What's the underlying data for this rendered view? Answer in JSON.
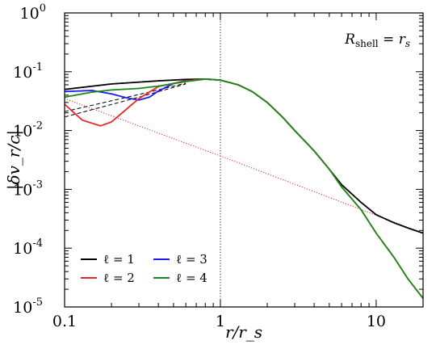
{
  "chart_data": {
    "type": "line",
    "xscale": "log",
    "yscale": "log",
    "xlim": [
      0.1,
      20
    ],
    "ylim": [
      1e-05,
      1
    ],
    "grid": false,
    "xlabel": "r/r_s",
    "ylabel": "|δv_r/c|",
    "x_ticks": [
      {
        "value": 0.1,
        "label": "0.1"
      },
      {
        "value": 1,
        "label": "1"
      },
      {
        "value": 10,
        "label": "10"
      }
    ],
    "y_ticks": [
      {
        "value": 1,
        "base": "10",
        "exp": "0"
      },
      {
        "value": 0.1,
        "base": "10",
        "exp": "-1"
      },
      {
        "value": 0.01,
        "base": "10",
        "exp": "-2"
      },
      {
        "value": 0.001,
        "base": "10",
        "exp": "-3"
      },
      {
        "value": 0.0001,
        "base": "10",
        "exp": "-4"
      },
      {
        "value": 1e-05,
        "base": "10",
        "exp": "-5"
      }
    ],
    "annotation": {
      "lhs": "R",
      "sub": "shell",
      "rhs": " = r",
      "rhs_sub": "s",
      "position": "top-right"
    },
    "vline": {
      "x": 1,
      "style": "dotted"
    },
    "legend": {
      "position": "bottom-left",
      "entries": [
        {
          "label": "ℓ = 1",
          "color": "#000000"
        },
        {
          "label": "ℓ = 2",
          "color": "#e8272a"
        },
        {
          "label": "ℓ = 3",
          "color": "#1c1cf0"
        },
        {
          "label": "ℓ = 4",
          "color": "#1a8a1a"
        }
      ]
    },
    "series": [
      {
        "name": "ℓ = 1",
        "color": "#000000",
        "x": [
          0.1,
          0.2,
          0.4,
          0.6,
          0.8,
          1.0,
          1.3,
          1.6,
          2.0,
          2.5,
          3.0,
          4.0,
          5.0,
          6.0,
          8.0,
          10.0,
          13.0,
          16.0,
          20.0
        ],
        "y": [
          0.05,
          0.062,
          0.07,
          0.074,
          0.075,
          0.072,
          0.06,
          0.046,
          0.03,
          0.017,
          0.01,
          0.0045,
          0.0022,
          0.0012,
          0.0006,
          0.00037,
          0.00027,
          0.00022,
          0.00018
        ]
      },
      {
        "name": "ℓ = 2",
        "color": "#e8272a",
        "x": [
          0.1,
          0.13,
          0.17,
          0.2,
          0.3,
          0.4,
          0.6,
          0.8,
          1.0,
          1.3,
          1.6,
          2.0,
          2.5,
          3.0,
          4.0,
          5.0,
          6.0,
          8.0,
          10.0,
          13.0,
          16.0,
          20.0
        ],
        "y": [
          0.028,
          0.015,
          0.012,
          0.014,
          0.035,
          0.056,
          0.07,
          0.075,
          0.072,
          0.06,
          0.046,
          0.03,
          0.017,
          0.01,
          0.0045,
          0.0022,
          0.0011,
          0.00045,
          0.00018,
          7e-05,
          3e-05,
          1.4e-05
        ]
      },
      {
        "name": "ℓ = 3",
        "color": "#1c1cf0",
        "x": [
          0.1,
          0.15,
          0.2,
          0.25,
          0.3,
          0.35,
          0.4,
          0.5,
          0.6,
          0.8,
          1.0
        ],
        "y": [
          0.046,
          0.048,
          0.042,
          0.036,
          0.033,
          0.037,
          0.047,
          0.063,
          0.071,
          0.075,
          0.072
        ]
      },
      {
        "name": "ℓ = 4",
        "color": "#1a8a1a",
        "x": [
          0.1,
          0.15,
          0.2,
          0.3,
          0.4,
          0.6,
          0.8,
          1.0,
          1.3,
          1.6,
          2.0,
          2.5,
          3.0,
          4.0,
          5.0,
          6.0,
          8.0,
          10.0,
          13.0,
          16.0,
          20.0
        ],
        "y": [
          0.037,
          0.045,
          0.049,
          0.052,
          0.057,
          0.068,
          0.075,
          0.072,
          0.06,
          0.046,
          0.03,
          0.017,
          0.01,
          0.0045,
          0.0022,
          0.0011,
          0.00045,
          0.00018,
          7e-05,
          3e-05,
          1.4e-05
        ]
      },
      {
        "name": "",
        "color": "#000000",
        "style": "dashed",
        "x": [
          0.1,
          0.3,
          0.6
        ],
        "y": [
          0.017,
          0.037,
          0.062
        ]
      },
      {
        "name": "",
        "color": "#000000",
        "style": "dashed",
        "x": [
          0.1,
          0.3,
          0.6
        ],
        "y": [
          0.021,
          0.041,
          0.064
        ]
      },
      {
        "name": "",
        "color": "#e8272a",
        "style": "dotted",
        "x": [
          0.1,
          1.0,
          20.0
        ],
        "y": [
          0.035,
          0.0037,
          0.00018
        ]
      }
    ]
  }
}
